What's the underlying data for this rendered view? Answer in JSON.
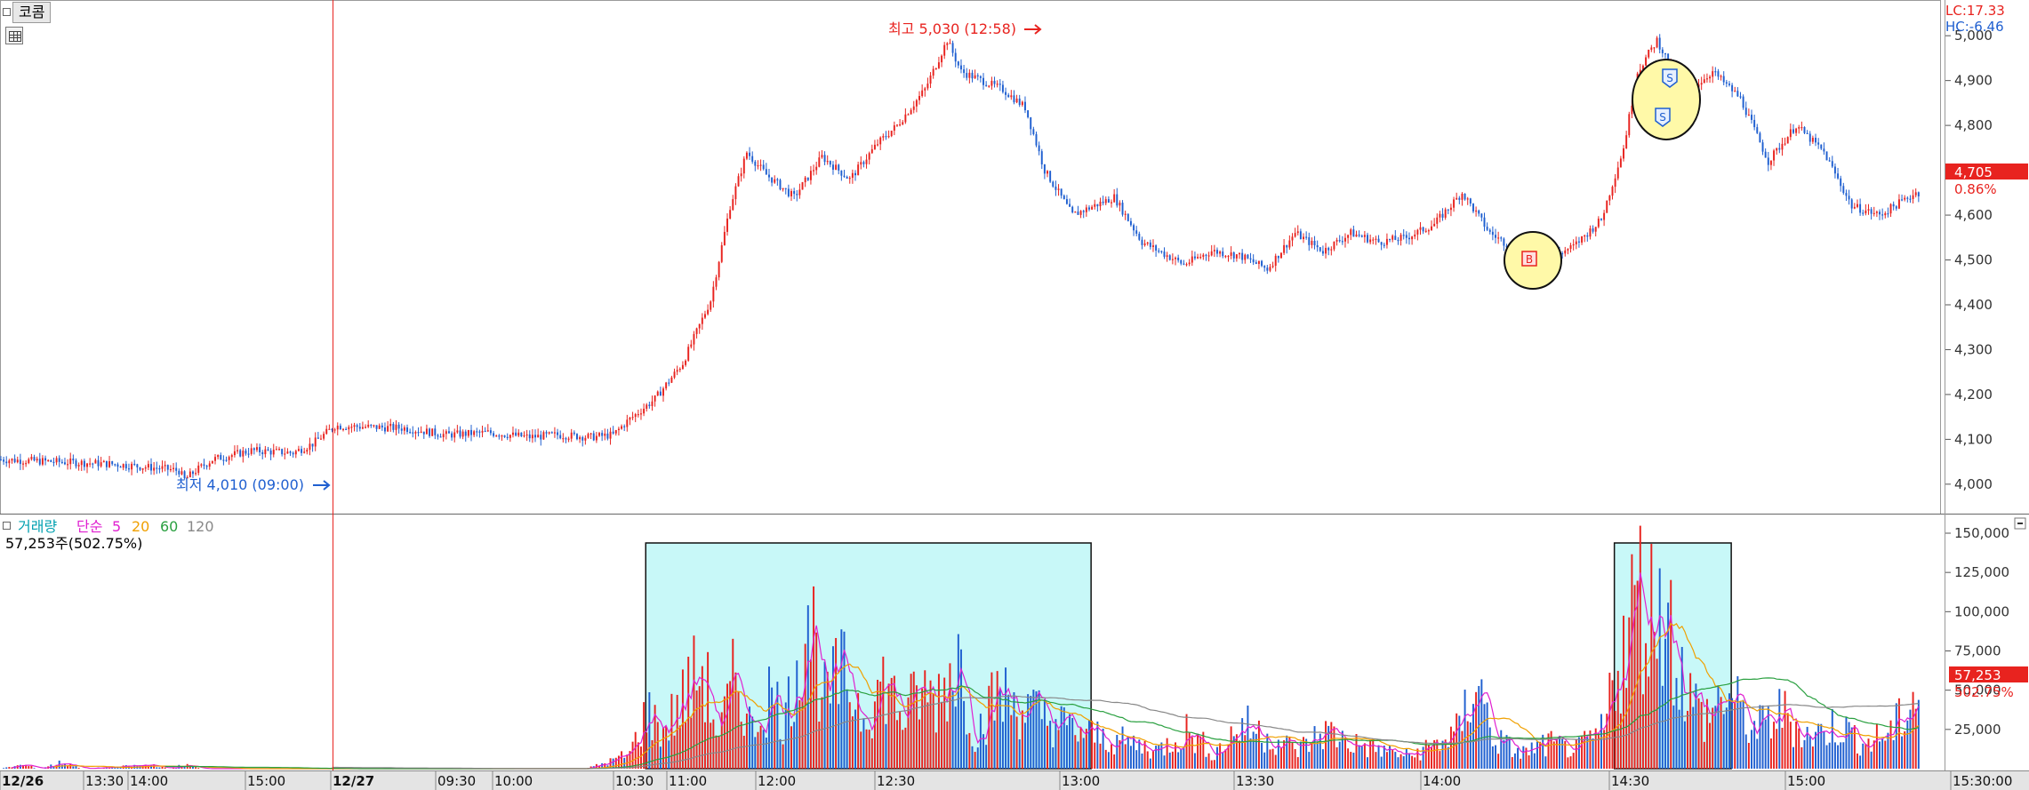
{
  "stock_name": "코콤",
  "price_panel": {
    "high_marker": "최고 5,030 (12:58)",
    "low_marker": "최저 4,010 (09:00)",
    "lc_label": "LC:17.33",
    "hc_label": "HC:-6.46",
    "current_price": "4,705",
    "current_change": "0.86%"
  },
  "volume_panel": {
    "legend_volume": "거래량",
    "legend_ma": "단순",
    "legend_periods": [
      "5",
      "20",
      "60",
      "120"
    ],
    "volume_text": "57,253주(502.75%)",
    "current_volume": "57,253",
    "current_ratio": "502.75%"
  },
  "signals": [
    "B",
    "S",
    "S"
  ],
  "colors": {
    "up": "#e8231f",
    "down": "#1f5fd0",
    "ma5": "#e020d0",
    "ma20": "#f0a000",
    "ma60": "#2aa040",
    "ma120": "#888888",
    "highlight": "#c8f8f8",
    "signal_circle": "#fff9a8"
  },
  "chart_data": {
    "type": "candlestick",
    "price_axis": {
      "ticks": [
        "5,000",
        "4,900",
        "4,800",
        "4,700",
        "4,600",
        "4,500",
        "4,400",
        "4,300",
        "4,200",
        "4,100",
        "4,000"
      ],
      "range": [
        3970,
        5040
      ]
    },
    "volume_axis": {
      "ticks": [
        "150,000",
        "125,000",
        "100,000",
        "75,000",
        "50,000",
        "25,000"
      ],
      "range": [
        0,
        150000
      ]
    },
    "time_axis": [
      "12/26",
      "13:30",
      "14:00",
      "15:00",
      "12/27",
      "09:30",
      "10:00",
      "10:30",
      "11:00",
      "12:00",
      "12:30",
      "13:00",
      "13:30",
      "14:00",
      "14:30",
      "15:00",
      "15:30:00"
    ],
    "price_path": [
      [
        0,
        4055
      ],
      [
        20,
        4050
      ],
      [
        40,
        4045
      ],
      [
        58,
        4035
      ],
      [
        64,
        4030
      ],
      [
        66,
        4010
      ],
      [
        70,
        4030
      ],
      [
        76,
        4055
      ],
      [
        90,
        4075
      ],
      [
        105,
        4070
      ],
      [
        112,
        4090
      ],
      [
        120,
        4130
      ],
      [
        145,
        4125
      ],
      [
        160,
        4110
      ],
      [
        175,
        4115
      ],
      [
        190,
        4105
      ],
      [
        200,
        4110
      ],
      [
        212,
        4105
      ],
      [
        220,
        4110
      ],
      [
        225,
        4140
      ],
      [
        235,
        4190
      ],
      [
        245,
        4270
      ],
      [
        255,
        4410
      ],
      [
        262,
        4620
      ],
      [
        268,
        4740
      ],
      [
        275,
        4690
      ],
      [
        285,
        4640
      ],
      [
        295,
        4730
      ],
      [
        305,
        4680
      ],
      [
        315,
        4760
      ],
      [
        322,
        4800
      ],
      [
        332,
        4880
      ],
      [
        340,
        4990
      ],
      [
        345,
        4920
      ],
      [
        360,
        4880
      ],
      [
        368,
        4840
      ],
      [
        375,
        4700
      ],
      [
        385,
        4600
      ],
      [
        400,
        4640
      ],
      [
        410,
        4540
      ],
      [
        425,
        4490
      ],
      [
        435,
        4520
      ],
      [
        445,
        4510
      ],
      [
        455,
        4480
      ],
      [
        465,
        4560
      ],
      [
        475,
        4520
      ],
      [
        485,
        4560
      ],
      [
        495,
        4540
      ],
      [
        505,
        4550
      ],
      [
        515,
        4580
      ],
      [
        525,
        4650
      ],
      [
        535,
        4560
      ],
      [
        545,
        4520
      ],
      [
        555,
        4500
      ],
      [
        565,
        4530
      ],
      [
        575,
        4590
      ],
      [
        583,
        4750
      ],
      [
        588,
        4920
      ],
      [
        595,
        4990
      ],
      [
        605,
        4870
      ],
      [
        615,
        4920
      ],
      [
        625,
        4860
      ],
      [
        635,
        4720
      ],
      [
        645,
        4800
      ],
      [
        655,
        4740
      ],
      [
        665,
        4620
      ],
      [
        675,
        4600
      ],
      [
        688,
        4650
      ]
    ],
    "volume_path": [
      [
        0,
        0
      ],
      [
        8,
        3000
      ],
      [
        14,
        0
      ],
      [
        22,
        5000
      ],
      [
        30,
        0
      ],
      [
        55,
        3000
      ],
      [
        60,
        0
      ],
      [
        66,
        3000
      ],
      [
        72,
        0
      ],
      [
        210,
        0
      ],
      [
        218,
        5000
      ],
      [
        226,
        12000
      ],
      [
        232,
        45000
      ],
      [
        238,
        30000
      ],
      [
        245,
        55000
      ],
      [
        252,
        80000
      ],
      [
        258,
        25000
      ],
      [
        264,
        75000
      ],
      [
        270,
        30000
      ],
      [
        276,
        60000
      ],
      [
        282,
        40000
      ],
      [
        290,
        132000
      ],
      [
        296,
        55000
      ],
      [
        302,
        75000
      ],
      [
        310,
        45000
      ],
      [
        318,
        70000
      ],
      [
        324,
        40000
      ],
      [
        330,
        60000
      ],
      [
        336,
        55000
      ],
      [
        344,
        90000
      ],
      [
        350,
        25000
      ],
      [
        358,
        60000
      ],
      [
        366,
        50000
      ],
      [
        376,
        40000
      ],
      [
        386,
        30000
      ],
      [
        396,
        25000
      ],
      [
        406,
        20000
      ],
      [
        416,
        15000
      ],
      [
        426,
        30000
      ],
      [
        436,
        12000
      ],
      [
        446,
        35000
      ],
      [
        456,
        25000
      ],
      [
        466,
        15000
      ],
      [
        476,
        30000
      ],
      [
        486,
        20000
      ],
      [
        496,
        15000
      ],
      [
        506,
        10000
      ],
      [
        516,
        20000
      ],
      [
        524,
        30000
      ],
      [
        530,
        75000
      ],
      [
        536,
        25000
      ],
      [
        546,
        12000
      ],
      [
        556,
        20000
      ],
      [
        566,
        15000
      ],
      [
        576,
        30000
      ],
      [
        580,
        85000
      ],
      [
        584,
        100000
      ],
      [
        588,
        145000
      ],
      [
        592,
        120000
      ],
      [
        596,
        143000
      ],
      [
        600,
        110000
      ],
      [
        606,
        60000
      ],
      [
        612,
        40000
      ],
      [
        620,
        60000
      ],
      [
        630,
        30000
      ],
      [
        640,
        45000
      ],
      [
        650,
        25000
      ],
      [
        660,
        35000
      ],
      [
        670,
        20000
      ],
      [
        680,
        30000
      ],
      [
        688,
        60000
      ]
    ],
    "highlighted_ranges": [
      [
        232,
        392
      ],
      [
        580,
        622
      ]
    ]
  }
}
